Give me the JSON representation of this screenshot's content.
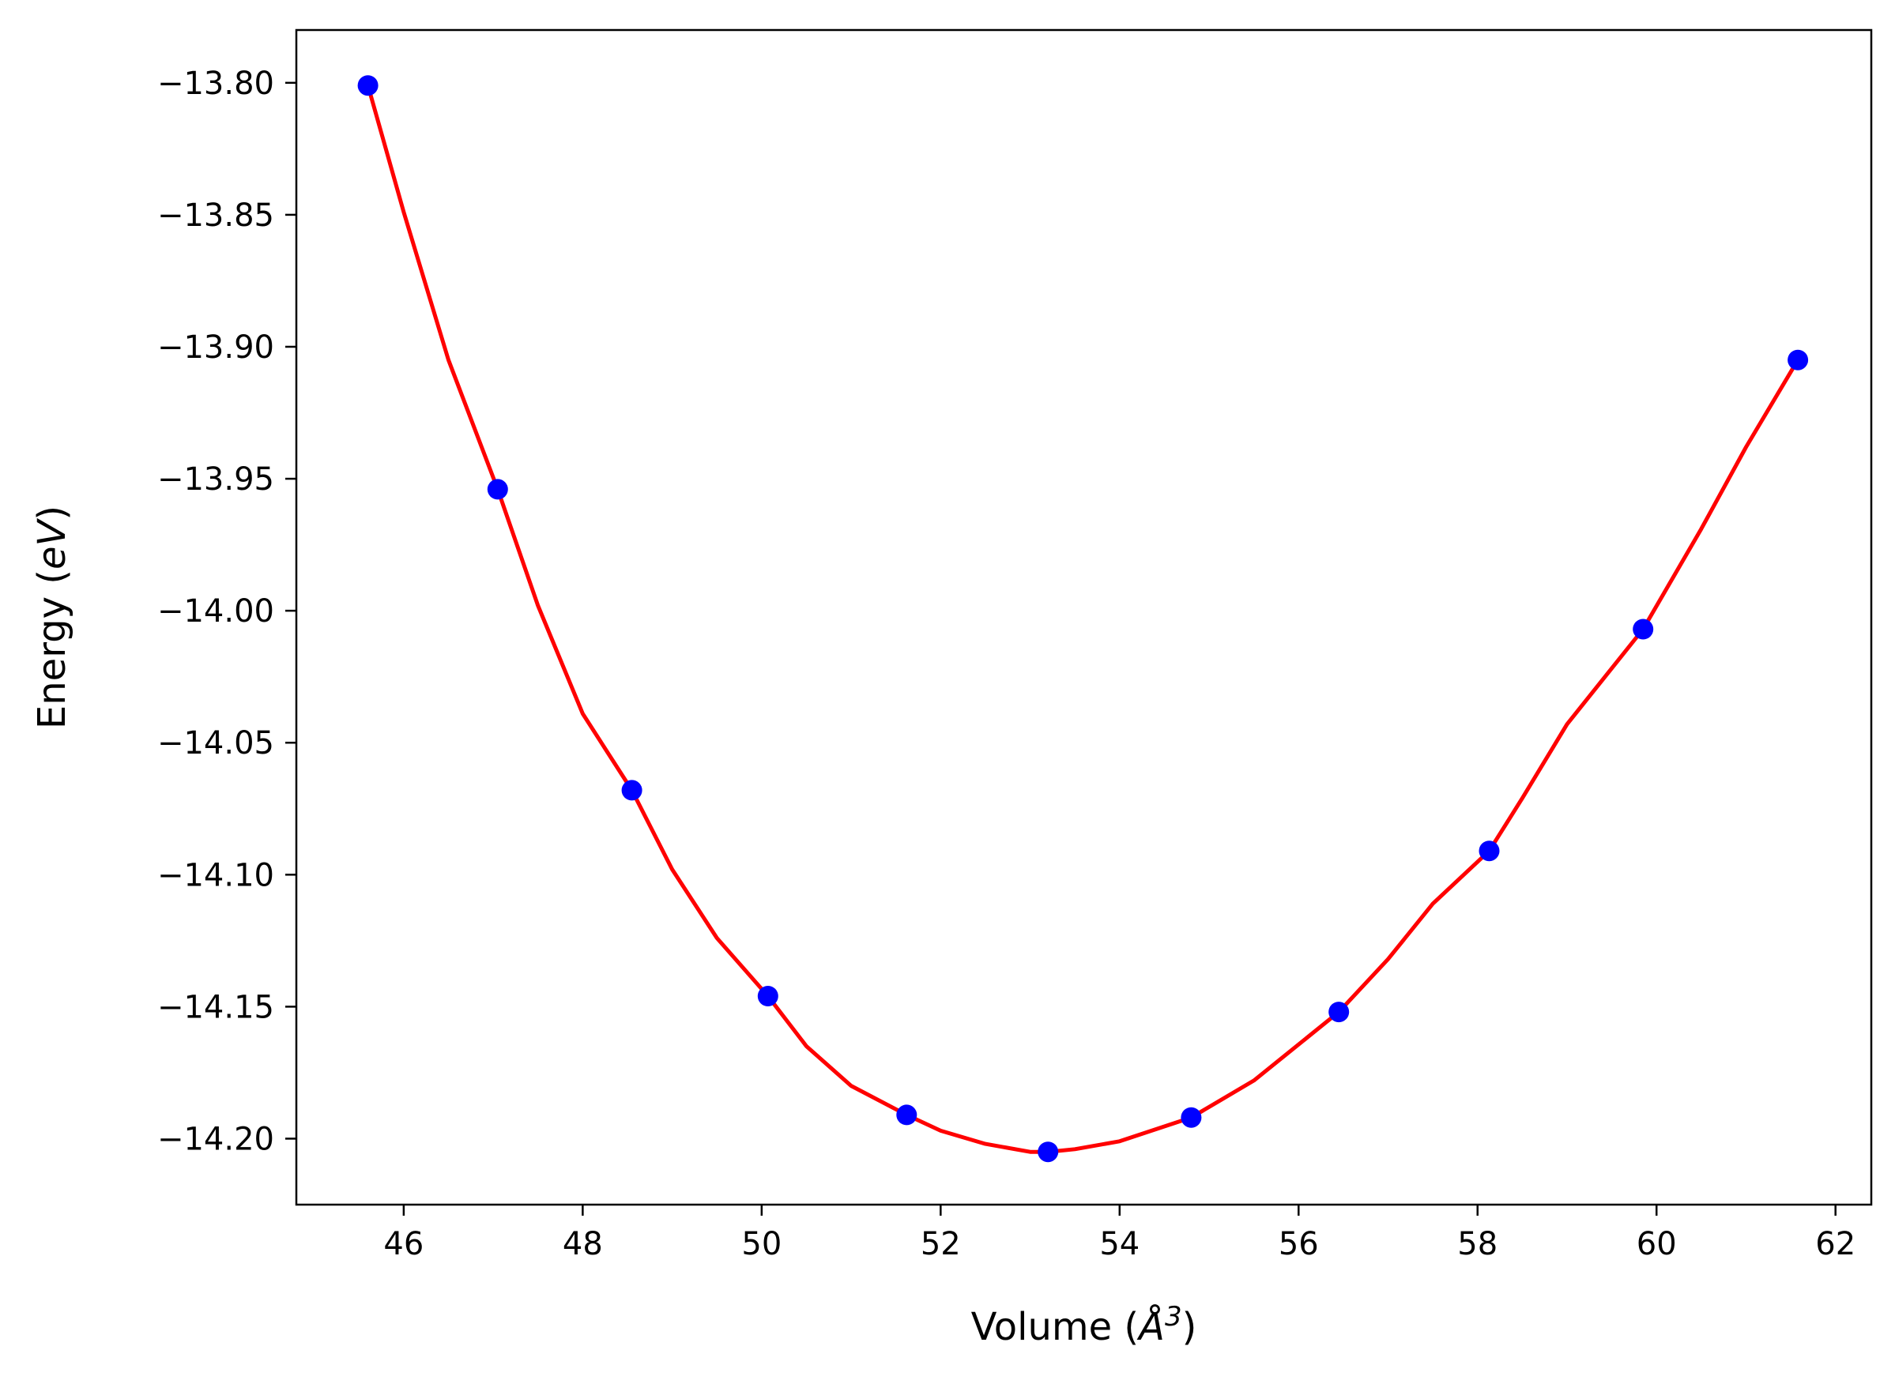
{
  "chart_data": {
    "type": "scatter",
    "title": "",
    "xlabel": {
      "prefix": "Volume (",
      "unit": "Å",
      "exponent": "3",
      "suffix": ")"
    },
    "ylabel": {
      "prefix": "Energy (",
      "unit": "eV",
      "suffix": ")"
    },
    "xlim": [
      44.8,
      62.4
    ],
    "ylim": [
      -14.225,
      -13.78
    ],
    "xticks": [
      46,
      48,
      50,
      52,
      54,
      56,
      58,
      60,
      62
    ],
    "xtick_labels": [
      "46",
      "48",
      "50",
      "52",
      "54",
      "56",
      "58",
      "60",
      "62"
    ],
    "yticks": [
      -13.8,
      -13.85,
      -13.9,
      -13.95,
      -14.0,
      -14.05,
      -14.1,
      -14.15,
      -14.2
    ],
    "ytick_labels": [
      "−13.80",
      "−13.85",
      "−13.90",
      "−13.95",
      "−14.00",
      "−14.05",
      "−14.10",
      "−14.15",
      "−14.20"
    ],
    "grid": false,
    "series": [
      {
        "kind": "points",
        "color": "#0000ff",
        "x": [
          45.6,
          47.05,
          48.55,
          50.07,
          51.62,
          53.2,
          54.8,
          56.45,
          58.13,
          59.85,
          61.58
        ],
        "y": [
          -13.801,
          -13.954,
          -14.068,
          -14.146,
          -14.191,
          -14.205,
          -14.192,
          -14.152,
          -14.091,
          -14.007,
          -13.905
        ]
      },
      {
        "kind": "fit-curve",
        "color": "#ff0000",
        "x": [
          45.6,
          46.0,
          46.5,
          47.05,
          47.5,
          48.0,
          48.55,
          49.0,
          49.5,
          50.07,
          50.5,
          51.0,
          51.62,
          52.0,
          52.5,
          53.0,
          53.2,
          53.5,
          54.0,
          54.8,
          55.5,
          56.45,
          57.0,
          57.5,
          58.13,
          58.5,
          59.0,
          59.85,
          60.5,
          61.0,
          61.58
        ],
        "y": [
          -13.801,
          -13.849,
          -13.905,
          -13.954,
          -13.998,
          -14.039,
          -14.068,
          -14.098,
          -14.124,
          -14.146,
          -14.165,
          -14.18,
          -14.191,
          -14.197,
          -14.202,
          -14.205,
          -14.205,
          -14.204,
          -14.201,
          -14.192,
          -14.178,
          -14.152,
          -14.132,
          -14.111,
          -14.091,
          -14.071,
          -14.043,
          -14.007,
          -13.969,
          -13.938,
          -13.905
        ]
      }
    ]
  }
}
